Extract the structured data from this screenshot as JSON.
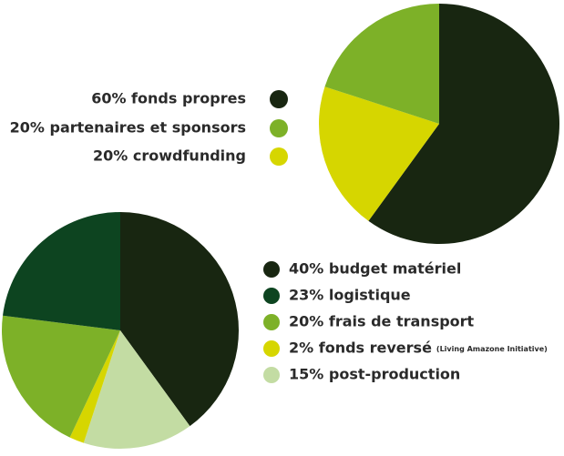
{
  "chart_data": [
    {
      "type": "pie",
      "title": "",
      "slices": [
        {
          "label": "60% fonds propres",
          "value": 60,
          "display": "60%",
          "color": "#182611"
        },
        {
          "label": "20% partenaires et sponsors",
          "value": 20,
          "display": "20%",
          "color": "#7db128"
        },
        {
          "label": "20% crowdfunding",
          "value": 20,
          "display": "20%",
          "color": "#d6d600"
        }
      ],
      "legend_position": "left"
    },
    {
      "type": "pie",
      "title": "",
      "slices": [
        {
          "label": "40% budget matériel",
          "value": 40,
          "display": "40%",
          "color": "#182611"
        },
        {
          "label": "23% logistique",
          "value": 23,
          "display": "23%",
          "color": "#0d4420"
        },
        {
          "label": "20% frais de transport",
          "value": 20,
          "display": "20%",
          "color": "#7db128"
        },
        {
          "label": "2% fonds reversé",
          "note": "(Living Amazone Initiative)",
          "value": 2,
          "display": "2%",
          "color": "#d6d600"
        },
        {
          "label": "15% post-production",
          "value": 15,
          "display": "15%",
          "color": "#c3dca3"
        }
      ],
      "legend_position": "right"
    }
  ]
}
